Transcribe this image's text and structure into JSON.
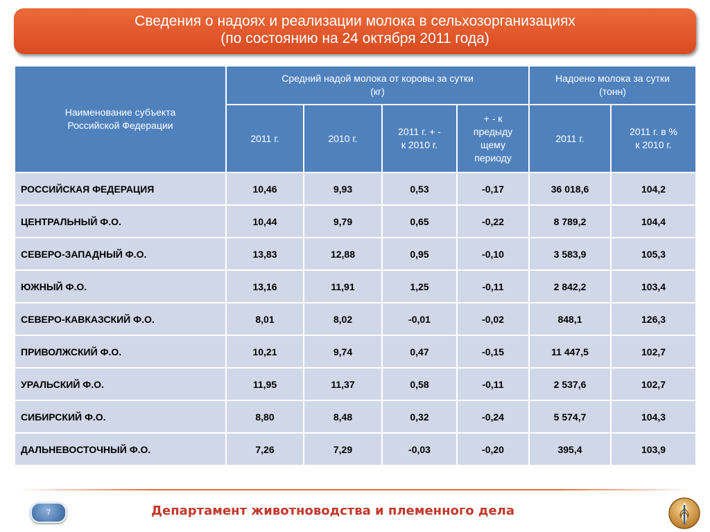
{
  "title": {
    "line1": "Сведения о надоях и реализации молока в сельхозорганизациях",
    "line2": "(по состоянию на 24 октября 2011 года)"
  },
  "table": {
    "header": {
      "subject_line1": "Наименование субъекта",
      "subject_line2": "Российской Федерации",
      "group1_line1": "Средний надой молока от коровы за сутки",
      "group1_line2": "(кг)",
      "group2_line1": "Надоено молока за сутки",
      "group2_line2": "(тонн)",
      "col_2011": "2011 г.",
      "col_2010": "2010 г.",
      "col_diff_line1": "2011 г. + -",
      "col_diff_line2": "к 2010 г.",
      "col_prev_line1": "+ - к",
      "col_prev_line2": "предыду",
      "col_prev_line3": "щему",
      "col_prev_line4": "периоду",
      "col_t2011": "2011 г.",
      "col_pct_line1": "2011 г. в %",
      "col_pct_line2": "к 2010 г."
    },
    "rows": [
      {
        "name": "РОССИЙСКАЯ ФЕДЕРАЦИЯ",
        "v2011": "10,46",
        "v2010": "9,93",
        "diff": "0,53",
        "prev": "-0,17",
        "tons": "36 018,6",
        "pct": "104,2"
      },
      {
        "name": "ЦЕНТРАЛЬНЫЙ Ф.О.",
        "v2011": "10,44",
        "v2010": "9,79",
        "diff": "0,65",
        "prev": "-0,22",
        "tons": "8 789,2",
        "pct": "104,4"
      },
      {
        "name": "СЕВЕРО-ЗАПАДНЫЙ Ф.О.",
        "v2011": "13,83",
        "v2010": "12,88",
        "diff": "0,95",
        "prev": "-0,10",
        "tons": "3 583,9",
        "pct": "105,3"
      },
      {
        "name": "ЮЖНЫЙ Ф.О.",
        "v2011": "13,16",
        "v2010": "11,91",
        "diff": "1,25",
        "prev": "-0,11",
        "tons": "2 842,2",
        "pct": "103,4"
      },
      {
        "name": "СЕВЕРО-КАВКАЗСКИЙ Ф.О.",
        "v2011": "8,01",
        "v2010": "8,02",
        "diff": "-0,01",
        "prev": "-0,02",
        "tons": "848,1",
        "pct": "126,3"
      },
      {
        "name": "ПРИВОЛЖСКИЙ Ф.О.",
        "v2011": "10,21",
        "v2010": "9,74",
        "diff": "0,47",
        "prev": "-0,15",
        "tons": "11 447,5",
        "pct": "102,7"
      },
      {
        "name": "УРАЛЬСКИЙ Ф.О.",
        "v2011": "11,95",
        "v2010": "11,37",
        "diff": "0,58",
        "prev": "-0,11",
        "tons": "2 537,6",
        "pct": "102,7"
      },
      {
        "name": "СИБИРСКИЙ Ф.О.",
        "v2011": "8,80",
        "v2010": "8,48",
        "diff": "0,32",
        "prev": "-0,24",
        "tons": "5 574,7",
        "pct": "104,3"
      },
      {
        "name": "ДАЛЬНЕВОСТОЧНЫЙ Ф.О.",
        "v2011": "7,26",
        "v2010": "7,29",
        "diff": "-0,03",
        "prev": "-0,20",
        "tons": "395,4",
        "pct": "103,9"
      }
    ]
  },
  "footer": {
    "page_number": "7",
    "department": "Департамент животноводства и племенного дела",
    "emblem_icon": "ministry-emblem-icon"
  },
  "colors": {
    "title_bg": "#e05a2c",
    "header_bg": "#4f81bd",
    "row_bg": "#d0d8e8",
    "footer_text": "#c0392b"
  }
}
